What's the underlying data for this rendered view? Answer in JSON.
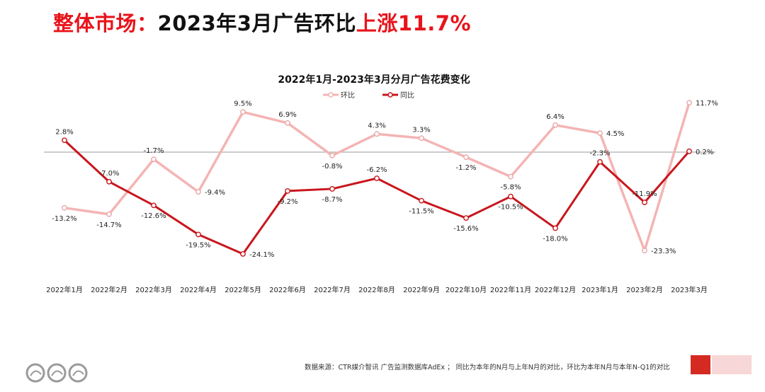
{
  "headline": {
    "prefix": "整体市场：",
    "middle": "2023年3月广告环比",
    "highlight": "上涨11.7%"
  },
  "footer": {
    "note": "数据来源：CTR媒介智讯 广告监测数据库AdEx ； 同比为本年的N月与上年N月的对比，环比为本年N月与本年N-Q1的对比"
  },
  "colors": {
    "accent_red": "#e8141b",
    "series_huanbi": "#f4b4b4",
    "series_tongbi": "#c8161d",
    "block_dark": "#d42a22",
    "block_light": "#f7d7d7"
  },
  "chart_data": {
    "type": "line",
    "title": "2022年1月-2023年3月分月广告花费变化",
    "legend_position": "top",
    "categories": [
      "2022年1月",
      "2022年2月",
      "2022年3月",
      "2022年4月",
      "2022年5月",
      "2022年6月",
      "2022年7月",
      "2022年8月",
      "2022年9月",
      "2022年10月",
      "2022年11月",
      "2022年12月",
      "2023年1月",
      "2023年2月",
      "2023年3月"
    ],
    "series": [
      {
        "name": "环比",
        "color": "#f4b4b4",
        "values": [
          -13.2,
          -14.7,
          -1.7,
          -9.4,
          9.5,
          6.9,
          -0.8,
          4.3,
          3.3,
          -1.2,
          -5.8,
          6.4,
          4.5,
          -23.3,
          11.7
        ],
        "labels": [
          "-13.2%",
          "-14.7%",
          "-1.7%",
          "-9.4%",
          "9.5%",
          "6.9%",
          "-0.8%",
          "4.3%",
          "3.3%",
          "-1.2%",
          "-5.8%",
          "6.4%",
          "4.5%",
          "-23.3%",
          "11.7%"
        ]
      },
      {
        "name": "同比",
        "color": "#c8161d",
        "values": [
          2.8,
          -7.0,
          -12.6,
          -19.5,
          -24.1,
          -9.2,
          -8.7,
          -6.2,
          -11.5,
          -15.6,
          -10.5,
          -18.0,
          -2.3,
          -11.9,
          0.2
        ],
        "labels": [
          "2.8%",
          "-7.0%",
          "-12.6%",
          "-19.5%",
          "-24.1%",
          "-9.2%",
          "-8.7%",
          "-6.2%",
          "-11.5%",
          "-15.6%",
          "-10.5%",
          "-18.0%",
          "-2.3%",
          "-11.9%",
          "0.2%"
        ]
      }
    ],
    "zero_line": true,
    "grid": false
  }
}
